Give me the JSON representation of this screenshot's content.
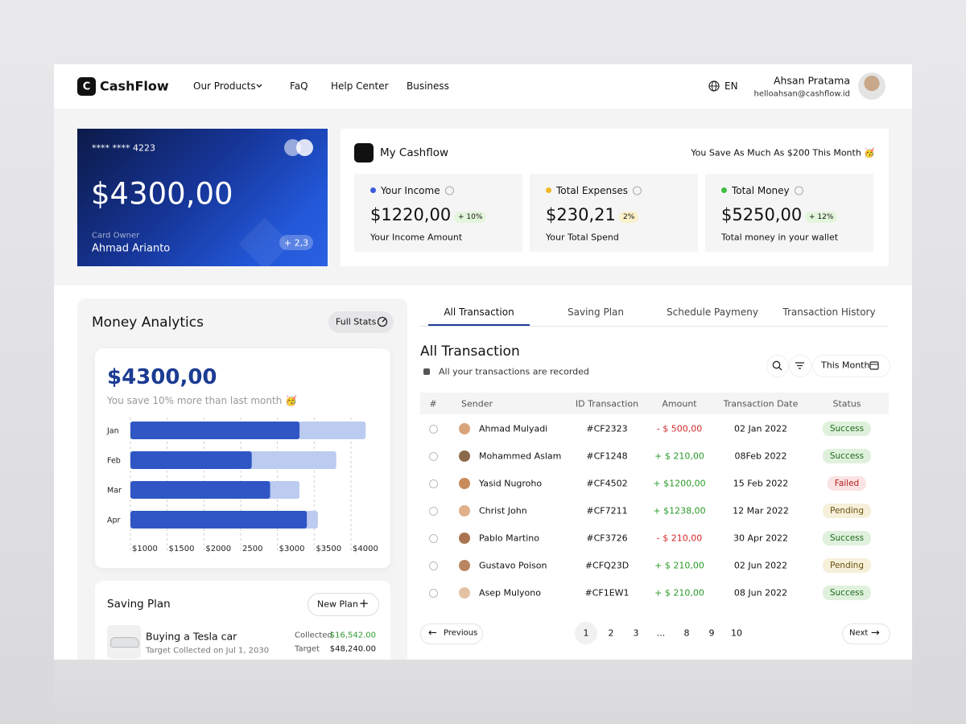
{
  "nav": {
    "logo": "C",
    "brand": "CashFlow",
    "links": [
      "Our Products",
      "FaQ",
      "Help Center",
      "Business"
    ],
    "language": "EN",
    "user": {
      "name": "Ahsan Pratama",
      "email": "helloahsan@cashflow.id"
    }
  },
  "card": {
    "number": "**** **** 4223",
    "balance": "$4300,00",
    "owner_label": "Card Owner",
    "owner": "Ahmad Arianto",
    "badge": "+ 2,3"
  },
  "cashflow": {
    "title": "My Cashflow",
    "note": "You Save As Much As $200 This Month 🥳",
    "stats": [
      {
        "label": "Your Income",
        "value": "$1220,00",
        "change": "+ 10%",
        "caption": "Your Income Amount",
        "color": "#3b5bdb",
        "badge_bg": "#e3f5dc"
      },
      {
        "label": "Total Expenses",
        "value": "$230,21",
        "change": "2%",
        "caption": "Your Total Spend",
        "color": "#f2b824",
        "badge_bg": "#fbf0c9"
      },
      {
        "label": "Total Money",
        "value": "$5250,00",
        "change": "+ 12%",
        "caption": "Total money in your wallet",
        "color": "#3fbf3f",
        "badge_bg": "#e3f5dc"
      }
    ]
  },
  "analytics": {
    "title": "Money Analytics",
    "button": "Full Stats",
    "amount": "$4300,00",
    "note": "You save 10% more than last month 🥳",
    "chart": {
      "type": "bar",
      "orientation": "horizontal",
      "categories": [
        "Jan",
        "Feb",
        "Mar",
        "Apr"
      ],
      "series": [
        {
          "color": "#bccbf0",
          "values": [
            4200,
            3800,
            3300,
            3550
          ]
        },
        {
          "color": "#2f56c4",
          "values": [
            3300,
            2650,
            2900,
            3400
          ]
        }
      ],
      "xlim": [
        1000,
        4300
      ],
      "xticks": [
        {
          "value": 1000,
          "label": "$1000"
        },
        {
          "value": 1500,
          "label": "$1500"
        },
        {
          "value": 2000,
          "label": "$2000"
        },
        {
          "value": 2500,
          "label": "2500"
        },
        {
          "value": 3000,
          "label": "$3000"
        },
        {
          "value": 3500,
          "label": "$3500"
        },
        {
          "value": 4000,
          "label": "$4000"
        }
      ],
      "grid": true
    }
  },
  "saving_plan": {
    "title": "Saving Plan",
    "button": "New Plan",
    "item": {
      "name": "Buying a Tesla car",
      "target_date": "Target Collected on Jul 1, 2030",
      "collected_label": "Collected",
      "collected": "$16,542.00",
      "target_label": "Target",
      "target": "$48,240.00"
    }
  },
  "tabs": [
    "All Transaction",
    "Saving Plan",
    "Schedule Paymeny",
    "Transaction History"
  ],
  "transactions": {
    "title": "All Transaction",
    "subtitle": "All your transactions are recorded",
    "filter": "This Month",
    "table": {
      "columns": [
        "#",
        "Sender",
        "ID Transaction",
        "Amount",
        "Transaction Date",
        "Status"
      ],
      "rows": [
        [
          "Ahmad Mulyadi",
          "#CF2323",
          "- $ 500,00",
          "02 Jan 2022",
          "Success"
        ],
        [
          "Mohammed Aslam",
          "#CF1248",
          "+ $ 210,00",
          "08Feb 2022",
          "Success"
        ],
        [
          "Yasid Nugroho",
          "#CF4502",
          "+ $1200,00",
          "15 Feb 2022",
          "Failed"
        ],
        [
          "Christ John",
          "#CF7211",
          "+ $1238,00",
          "12 Mar 2022",
          "Pending"
        ],
        [
          "Pablo Martino",
          "#CF3726",
          "- $ 210,00",
          "30 Apr 2022",
          "Success"
        ],
        [
          "Gustavo Poison",
          "#CFQ23D",
          "+ $ 210,00",
          "02 Jun 2022",
          "Pending"
        ],
        [
          "Asep Mulyono",
          "#CF1EW1",
          "+ $ 210,00",
          "08 Jun 2022",
          "Success"
        ]
      ]
    }
  },
  "pagination": {
    "previous": "Previous",
    "pages": [
      "1",
      "2",
      "3",
      "...",
      "8",
      "9",
      "10"
    ],
    "next": "Next"
  }
}
